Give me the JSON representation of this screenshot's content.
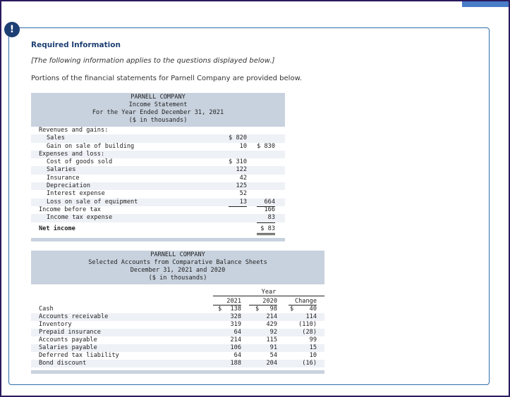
{
  "alert_glyph": "!",
  "required_title": "Required Information",
  "note": "[The following information applies to the questions displayed below.]",
  "intro": "Portions of the financial statements for Parnell Company are provided below.",
  "income_statement": {
    "header": [
      "PARNELL COMPANY",
      "Income Statement",
      "For the Year Ended December 31, 2021",
      "($ in thousands)"
    ],
    "rows": [
      {
        "label": "Revenues and gains:",
        "indent": 1,
        "c1": "",
        "c2": ""
      },
      {
        "label": "Sales",
        "indent": 2,
        "c1": "$ 820",
        "c2": ""
      },
      {
        "label": "Gain on sale of building",
        "indent": 2,
        "c1": "10",
        "c2": "$ 830"
      },
      {
        "label": "Expenses and loss:",
        "indent": 1,
        "c1": "",
        "c2": ""
      },
      {
        "label": "Cost of goods sold",
        "indent": 2,
        "c1": "$ 310",
        "c2": ""
      },
      {
        "label": "Salaries",
        "indent": 2,
        "c1": "122",
        "c2": ""
      },
      {
        "label": "Insurance",
        "indent": 2,
        "c1": "42",
        "c2": ""
      },
      {
        "label": "Depreciation",
        "indent": 2,
        "c1": "125",
        "c2": ""
      },
      {
        "label": "Interest expense",
        "indent": 2,
        "c1": "52",
        "c2": ""
      },
      {
        "label": "Loss on sale of equipment",
        "indent": 2,
        "c1": "13",
        "c2": "664"
      },
      {
        "label": "Income before tax",
        "indent": 1,
        "c1": "",
        "c2": "166"
      },
      {
        "label": "Income tax expense",
        "indent": 2,
        "c1": "",
        "c2": "83"
      },
      {
        "label": "Net income",
        "indent": 1,
        "c1": "",
        "c2": "$ 83"
      }
    ]
  },
  "balance_sheet": {
    "header": [
      "PARNELL COMPANY",
      "Selected Accounts from Comparative Balance Sheets",
      "December 31, 2021 and 2020",
      "($ in thousands)"
    ],
    "year_label": "Year",
    "col_2021": "2021",
    "col_2020": "2020",
    "col_change": "Change",
    "rows": [
      {
        "label": "Cash",
        "y2021": "138",
        "y2020": "98",
        "change": "40"
      },
      {
        "label": "Accounts receivable",
        "y2021": "328",
        "y2020": "214",
        "change": "114"
      },
      {
        "label": "Inventory",
        "y2021": "319",
        "y2020": "429",
        "change": "(110)"
      },
      {
        "label": "Prepaid insurance",
        "y2021": "64",
        "y2020": "92",
        "change": "(28)"
      },
      {
        "label": "Accounts payable",
        "y2021": "214",
        "y2020": "115",
        "change": "99"
      },
      {
        "label": "Salaries payable",
        "y2021": "106",
        "y2020": "91",
        "change": "15"
      },
      {
        "label": "Deferred tax liability",
        "y2021": "64",
        "y2020": "54",
        "change": "10"
      },
      {
        "label": "Bond discount",
        "y2021": "188",
        "y2020": "204",
        "change": "(16)"
      }
    ],
    "currency_symbol": "$"
  }
}
